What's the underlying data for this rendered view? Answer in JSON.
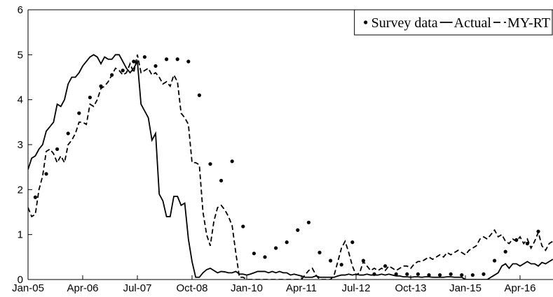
{
  "chart_data": {
    "type": "line",
    "legend": "upper right",
    "xlim": [
      0,
      144
    ],
    "ylim": [
      0,
      6
    ],
    "xticks": [
      {
        "value": 0,
        "label": "Jan-05"
      },
      {
        "value": 15,
        "label": "Apr-06"
      },
      {
        "value": 30,
        "label": "Jul-07"
      },
      {
        "value": 45,
        "label": "Oct-08"
      },
      {
        "value": 60,
        "label": "Jan-10"
      },
      {
        "value": 75,
        "label": "Apr-11"
      },
      {
        "value": 90,
        "label": "Jul-12"
      },
      {
        "value": 105,
        "label": "Oct-13"
      },
      {
        "value": 120,
        "label": "Jan-15"
      },
      {
        "value": 135,
        "label": "Apr-16"
      }
    ],
    "yticks": [
      0,
      1,
      2,
      3,
      4,
      5,
      6
    ],
    "x": [
      0,
      1,
      2,
      3,
      4,
      5,
      6,
      7,
      8,
      9,
      10,
      11,
      12,
      13,
      14,
      15,
      16,
      17,
      18,
      19,
      20,
      21,
      22,
      23,
      24,
      25,
      26,
      27,
      28,
      29,
      30,
      31,
      32,
      33,
      34,
      35,
      36,
      37,
      38,
      39,
      40,
      41,
      42,
      43,
      44,
      45,
      46,
      47,
      48,
      49,
      50,
      51,
      52,
      53,
      54,
      55,
      56,
      57,
      58,
      59,
      60,
      61,
      62,
      63,
      64,
      65,
      66,
      67,
      68,
      69,
      70,
      71,
      72,
      73,
      74,
      75,
      76,
      77,
      78,
      79,
      80,
      81,
      82,
      83,
      84,
      85,
      86,
      87,
      88,
      89,
      90,
      91,
      92,
      93,
      94,
      95,
      96,
      97,
      98,
      99,
      100,
      101,
      102,
      103,
      104,
      105,
      106,
      107,
      108,
      109,
      110,
      111,
      112,
      113,
      114,
      115,
      116,
      117,
      118,
      119,
      120,
      121,
      122,
      123,
      124,
      125,
      126,
      127,
      128,
      129,
      130,
      131,
      132,
      133,
      134,
      135,
      136,
      137,
      138,
      139,
      140,
      141,
      142,
      143,
      144
    ],
    "series": [
      {
        "name": "Survey data",
        "color": "#000000",
        "style": "dots",
        "x": [
          2,
          5,
          8,
          11,
          14,
          17,
          20,
          23,
          26,
          29,
          32,
          35,
          38,
          41,
          44,
          47,
          50,
          53,
          56,
          59,
          62,
          65,
          68,
          71,
          74,
          77,
          80,
          83,
          86,
          89,
          92,
          95,
          98,
          101,
          104,
          107,
          110,
          113,
          116,
          119,
          122,
          125,
          128,
          131,
          134,
          137,
          140
        ],
        "values": [
          1.83,
          2.35,
          2.9,
          3.25,
          3.7,
          4.05,
          4.3,
          4.55,
          4.65,
          4.85,
          4.95,
          4.75,
          4.9,
          4.9,
          4.85,
          4.1,
          2.57,
          2.2,
          2.63,
          1.18,
          0.58,
          0.5,
          0.7,
          0.83,
          1.1,
          1.27,
          0.6,
          0.42,
          0.33,
          0.83,
          0.42,
          0.12,
          0.3,
          0.12,
          0.12,
          0.12,
          0.1,
          0.1,
          0.12,
          0.1,
          0.1,
          0.12,
          0.42,
          0.62,
          0.88,
          0.8,
          1.07
        ]
      },
      {
        "name": "Actual",
        "color": "#000000",
        "style": "solid",
        "values": [
          2.45,
          2.7,
          2.75,
          2.9,
          3.0,
          3.3,
          3.4,
          3.5,
          3.9,
          3.85,
          4.0,
          4.35,
          4.5,
          4.5,
          4.6,
          4.75,
          4.85,
          4.95,
          5.0,
          4.95,
          4.8,
          4.95,
          4.9,
          4.9,
          5.0,
          5.0,
          4.85,
          4.7,
          4.6,
          4.7,
          4.85,
          3.9,
          3.75,
          3.6,
          3.1,
          3.25,
          1.9,
          1.75,
          1.4,
          1.4,
          1.85,
          1.85,
          1.65,
          1.7,
          0.9,
          0.4,
          0.05,
          0.05,
          0.15,
          0.22,
          0.25,
          0.2,
          0.15,
          0.18,
          0.17,
          0.15,
          0.15,
          0.18,
          0.12,
          0.12,
          0.1,
          0.12,
          0.15,
          0.18,
          0.18,
          0.18,
          0.15,
          0.18,
          0.15,
          0.18,
          0.15,
          0.15,
          0.1,
          0.12,
          0.1,
          0.08,
          0.05,
          0.05,
          0.05,
          0.08,
          0.05,
          0.05,
          0.05,
          0.05,
          0.05,
          0.08,
          0.1,
          0.1,
          0.12,
          0.1,
          0.12,
          0.1,
          0.1,
          0.12,
          0.1,
          0.1,
          0.1,
          0.12,
          0.1,
          0.12,
          0.1,
          0.08,
          0.08,
          0.06,
          0.06,
          0.05,
          0.06,
          0.06,
          0.05,
          0.06,
          0.06,
          0.05,
          0.05,
          0.05,
          0.05,
          0.06,
          0.06,
          0.05,
          0.05,
          0.05,
          0,
          0,
          0,
          0,
          0,
          0,
          0,
          0.05,
          0.1,
          0.15,
          0.3,
          0.35,
          0.25,
          0.35,
          0.35,
          0.3,
          0.35,
          0.4,
          0.35,
          0.35,
          0.3,
          0.38,
          0.35,
          0.4,
          0.45
        ]
      },
      {
        "name": "MY-RT",
        "color": "#000000",
        "style": "dashed",
        "values": [
          1.6,
          1.4,
          1.45,
          2.0,
          2.3,
          2.85,
          2.9,
          2.8,
          2.6,
          2.75,
          2.6,
          3.0,
          3.1,
          3.25,
          3.5,
          3.5,
          3.45,
          3.9,
          3.85,
          4.0,
          4.25,
          4.3,
          4.4,
          4.55,
          4.7,
          4.65,
          4.55,
          4.6,
          4.8,
          4.6,
          5.0,
          4.6,
          4.65,
          4.7,
          4.55,
          4.6,
          4.5,
          4.35,
          4.4,
          4.3,
          4.55,
          4.4,
          3.7,
          3.6,
          3.45,
          2.6,
          2.6,
          2.55,
          1.5,
          1.0,
          0.75,
          1.3,
          1.6,
          1.65,
          1.55,
          1.4,
          1.2,
          0.6,
          0.05,
          0.05,
          0,
          0,
          0,
          0,
          0,
          0,
          0,
          0,
          0,
          0,
          0,
          0,
          0,
          0,
          0,
          0,
          0.1,
          0.2,
          0.25,
          0.1,
          0,
          0,
          0,
          0,
          0.1,
          0.4,
          0.7,
          0.85,
          0.6,
          0.3,
          0.1,
          0.15,
          0.4,
          0.3,
          0.2,
          0.25,
          0.2,
          0.25,
          0.2,
          0.3,
          0.25,
          0.2,
          0.25,
          0.3,
          0.3,
          0.25,
          0.35,
          0.4,
          0.4,
          0.45,
          0.5,
          0.45,
          0.5,
          0.55,
          0.5,
          0.6,
          0.55,
          0.6,
          0.65,
          0.6,
          0.55,
          0.65,
          0.7,
          0.75,
          0.9,
          0.95,
          0.9,
          1.0,
          1.1,
          0.95,
          1.0,
          0.85,
          0.8,
          0.9,
          0.85,
          0.95,
          0.8,
          0.9,
          0.7,
          0.85,
          1.05,
          0.75,
          0.65,
          0.8,
          0.85
        ]
      }
    ]
  }
}
